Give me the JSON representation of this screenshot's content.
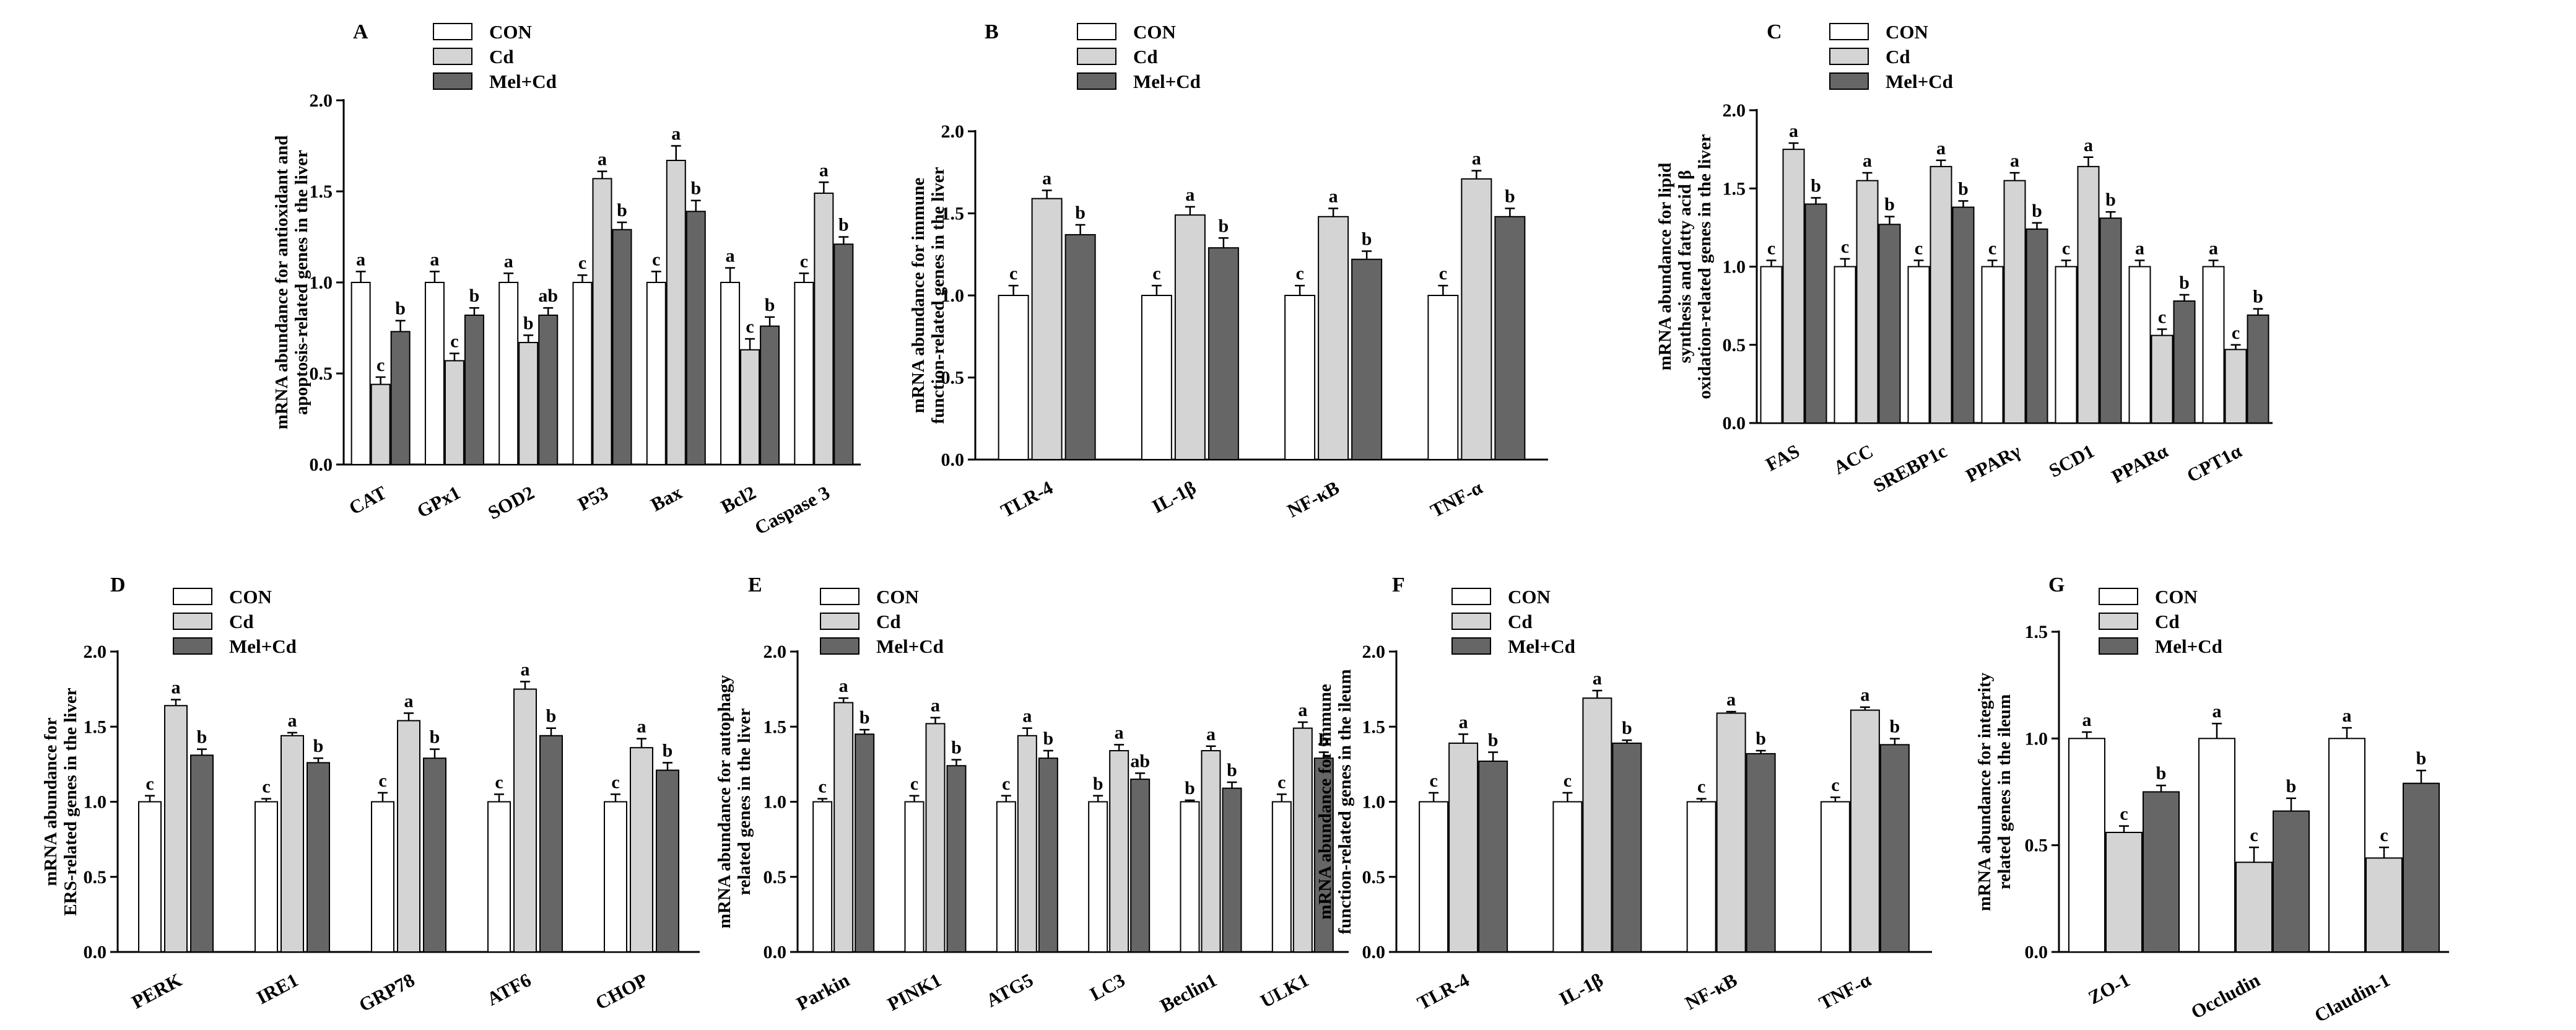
{
  "colors": {
    "CON": "#ffffff",
    "Cd": "#d4d4d4",
    "Mel+Cd": "#666666"
  },
  "legend": [
    "CON",
    "Cd",
    "Mel+Cd"
  ],
  "chart_data": [
    {
      "panel": "A",
      "type": "bar",
      "ylabel_lines": [
        "mRNA abundance for antioxidant and",
        "apoptosis-related genes in the liver"
      ],
      "ylim": [
        0,
        2.0
      ],
      "yticks": [
        "0.0",
        "0.5",
        "1.0",
        "1.5",
        "2.0"
      ],
      "categories": [
        "CAT",
        "GPx1",
        "SOD2",
        "P53",
        "Bax",
        "Bcl2",
        "Caspase 3"
      ],
      "series": [
        {
          "name": "CON",
          "values": [
            1.0,
            1.0,
            1.0,
            1.0,
            1.0,
            1.0,
            1.0
          ],
          "errors": [
            0.06,
            0.06,
            0.05,
            0.04,
            0.06,
            0.08,
            0.05
          ],
          "letters": [
            "a",
            "a",
            "a",
            "c",
            "c",
            "a",
            "c"
          ]
        },
        {
          "name": "Cd",
          "values": [
            0.44,
            0.57,
            0.67,
            1.57,
            1.67,
            0.63,
            1.49
          ],
          "errors": [
            0.04,
            0.04,
            0.04,
            0.04,
            0.08,
            0.06,
            0.06
          ],
          "letters": [
            "c",
            "c",
            "b",
            "a",
            "a",
            "c",
            "a"
          ]
        },
        {
          "name": "Mel+Cd",
          "values": [
            0.73,
            0.82,
            0.82,
            1.29,
            1.39,
            0.76,
            1.21
          ],
          "errors": [
            0.06,
            0.04,
            0.04,
            0.04,
            0.06,
            0.05,
            0.04
          ],
          "letters": [
            "b",
            "b",
            "ab",
            "b",
            "b",
            "b",
            "b"
          ]
        }
      ]
    },
    {
      "panel": "B",
      "type": "bar",
      "ylabel_lines": [
        "mRNA abundance for immune",
        "function-related genes in the liver"
      ],
      "ylim": [
        0,
        2.0
      ],
      "yticks": [
        "0.0",
        "0.5",
        "1.0",
        "1.5",
        "2.0"
      ],
      "categories": [
        "TLR-4",
        "IL-1β",
        "NF-κB",
        "TNF-α"
      ],
      "series": [
        {
          "name": "CON",
          "values": [
            1.0,
            1.0,
            1.0,
            1.0
          ],
          "errors": [
            0.06,
            0.06,
            0.06,
            0.06
          ],
          "letters": [
            "c",
            "c",
            "c",
            "c"
          ]
        },
        {
          "name": "Cd",
          "values": [
            1.59,
            1.49,
            1.48,
            1.71
          ],
          "errors": [
            0.05,
            0.05,
            0.05,
            0.05
          ],
          "letters": [
            "a",
            "a",
            "a",
            "a"
          ]
        },
        {
          "name": "Mel+Cd",
          "values": [
            1.37,
            1.29,
            1.22,
            1.48
          ],
          "errors": [
            0.06,
            0.06,
            0.05,
            0.05
          ],
          "letters": [
            "b",
            "b",
            "b",
            "b"
          ]
        }
      ]
    },
    {
      "panel": "C",
      "type": "bar",
      "ylabel_lines": [
        "mRNA abundance for lipid",
        "synthesis and fatty acid β",
        "oxidation-related genes in the liver"
      ],
      "ylim": [
        0,
        2.0
      ],
      "yticks": [
        "0.0",
        "0.5",
        "1.0",
        "1.5",
        "2.0"
      ],
      "categories": [
        "FAS",
        "ACC",
        "SREBP1c",
        "PPARγ",
        "SCD1",
        "PPARα",
        "CPT1α"
      ],
      "series": [
        {
          "name": "CON",
          "values": [
            1.0,
            1.0,
            1.0,
            1.0,
            1.0,
            1.0,
            1.0
          ],
          "errors": [
            0.04,
            0.05,
            0.04,
            0.04,
            0.04,
            0.04,
            0.04
          ],
          "letters": [
            "c",
            "c",
            "c",
            "c",
            "c",
            "a",
            "a"
          ]
        },
        {
          "name": "Cd",
          "values": [
            1.75,
            1.55,
            1.64,
            1.55,
            1.64,
            0.56,
            0.47
          ],
          "errors": [
            0.04,
            0.05,
            0.04,
            0.05,
            0.06,
            0.04,
            0.03
          ],
          "letters": [
            "a",
            "a",
            "a",
            "a",
            "a",
            "c",
            "c"
          ]
        },
        {
          "name": "Mel+Cd",
          "values": [
            1.4,
            1.27,
            1.38,
            1.24,
            1.31,
            0.78,
            0.69
          ],
          "errors": [
            0.04,
            0.05,
            0.04,
            0.04,
            0.04,
            0.04,
            0.04
          ],
          "letters": [
            "b",
            "b",
            "b",
            "b",
            "b",
            "b",
            "b"
          ]
        }
      ]
    },
    {
      "panel": "D",
      "type": "bar",
      "ylabel_lines": [
        "mRNA abundance for",
        "ERS-related genes in the liver"
      ],
      "ylim": [
        0,
        2.0
      ],
      "yticks": [
        "0.0",
        "0.5",
        "1.0",
        "1.5",
        "2.0"
      ],
      "categories": [
        "PERK",
        "IRE1",
        "GRP78",
        "ATF6",
        "CHOP"
      ],
      "series": [
        {
          "name": "CON",
          "values": [
            1.0,
            1.0,
            1.0,
            1.0,
            1.0
          ],
          "errors": [
            0.04,
            0.02,
            0.06,
            0.05,
            0.05
          ],
          "letters": [
            "c",
            "c",
            "c",
            "c",
            "c"
          ]
        },
        {
          "name": "Cd",
          "values": [
            1.64,
            1.44,
            1.54,
            1.75,
            1.36
          ],
          "errors": [
            0.04,
            0.02,
            0.05,
            0.05,
            0.06
          ],
          "letters": [
            "a",
            "a",
            "a",
            "a",
            "a"
          ]
        },
        {
          "name": "Mel+Cd",
          "values": [
            1.31,
            1.26,
            1.29,
            1.44,
            1.21
          ],
          "errors": [
            0.04,
            0.03,
            0.06,
            0.05,
            0.05
          ],
          "letters": [
            "b",
            "b",
            "b",
            "b",
            "b"
          ]
        }
      ]
    },
    {
      "panel": "E",
      "type": "bar",
      "ylabel_lines": [
        "mRNA abundance for autophagy",
        "related genes in the liver"
      ],
      "ylim": [
        0,
        2.0
      ],
      "yticks": [
        "0.0",
        "0.5",
        "1.0",
        "1.5",
        "2.0"
      ],
      "categories": [
        "Parkin",
        "PINK1",
        "ATG5",
        "LC3",
        "Beclin1",
        "ULK1"
      ],
      "series": [
        {
          "name": "CON",
          "values": [
            1.0,
            1.0,
            1.0,
            1.0,
            1.0,
            1.0
          ],
          "errors": [
            0.02,
            0.04,
            0.04,
            0.04,
            0.01,
            0.05
          ],
          "letters": [
            "c",
            "c",
            "c",
            "b",
            "b",
            "c"
          ]
        },
        {
          "name": "Cd",
          "values": [
            1.66,
            1.52,
            1.44,
            1.34,
            1.34,
            1.49
          ],
          "errors": [
            0.03,
            0.04,
            0.05,
            0.04,
            0.03,
            0.04
          ],
          "letters": [
            "a",
            "a",
            "a",
            "a",
            "a",
            "a"
          ]
        },
        {
          "name": "Mel+Cd",
          "values": [
            1.45,
            1.24,
            1.29,
            1.15,
            1.09,
            1.29
          ],
          "errors": [
            0.03,
            0.04,
            0.05,
            0.04,
            0.04,
            0.04
          ],
          "letters": [
            "b",
            "b",
            "b",
            "ab",
            "b",
            "b"
          ]
        }
      ]
    },
    {
      "panel": "F",
      "type": "bar",
      "ylabel_lines": [
        "mRNA abundance for immune",
        "function-related genes in the ileum"
      ],
      "ylim": [
        0,
        2.0
      ],
      "yticks": [
        "0.0",
        "0.5",
        "1.0",
        "1.5",
        "2.0"
      ],
      "categories": [
        "TLR-4",
        "IL-1β",
        "NF-κB",
        "TNF-α"
      ],
      "series": [
        {
          "name": "CON",
          "values": [
            1.0,
            1.0,
            1.0,
            1.0
          ],
          "errors": [
            0.06,
            0.06,
            0.02,
            0.03
          ],
          "letters": [
            "c",
            "c",
            "c",
            "c"
          ]
        },
        {
          "name": "Cd",
          "values": [
            1.39,
            1.69,
            1.59,
            1.61
          ],
          "errors": [
            0.06,
            0.05,
            0.01,
            0.02
          ],
          "letters": [
            "a",
            "a",
            "a",
            "a"
          ]
        },
        {
          "name": "Mel+Cd",
          "values": [
            1.27,
            1.39,
            1.32,
            1.38
          ],
          "errors": [
            0.06,
            0.02,
            0.02,
            0.04
          ],
          "letters": [
            "b",
            "b",
            "b",
            "b"
          ]
        }
      ]
    },
    {
      "panel": "G",
      "type": "bar",
      "ylabel_lines": [
        "mRNA abundance for integrity",
        "related genes in the ileum"
      ],
      "ylim": [
        0,
        1.5
      ],
      "yticks": [
        "0.0",
        "0.5",
        "1.0",
        "1.5"
      ],
      "categories": [
        "ZO-1",
        "Occludin",
        "Claudin-1"
      ],
      "series": [
        {
          "name": "CON",
          "values": [
            1.0,
            1.0,
            1.0
          ],
          "errors": [
            0.03,
            0.07,
            0.05
          ],
          "letters": [
            "a",
            "a",
            "a"
          ]
        },
        {
          "name": "Cd",
          "values": [
            0.56,
            0.42,
            0.44
          ],
          "errors": [
            0.03,
            0.07,
            0.05
          ],
          "letters": [
            "c",
            "c",
            "c"
          ]
        },
        {
          "name": "Mel+Cd",
          "values": [
            0.75,
            0.66,
            0.79
          ],
          "errors": [
            0.03,
            0.06,
            0.06
          ],
          "letters": [
            "b",
            "b",
            "b"
          ]
        }
      ]
    }
  ]
}
